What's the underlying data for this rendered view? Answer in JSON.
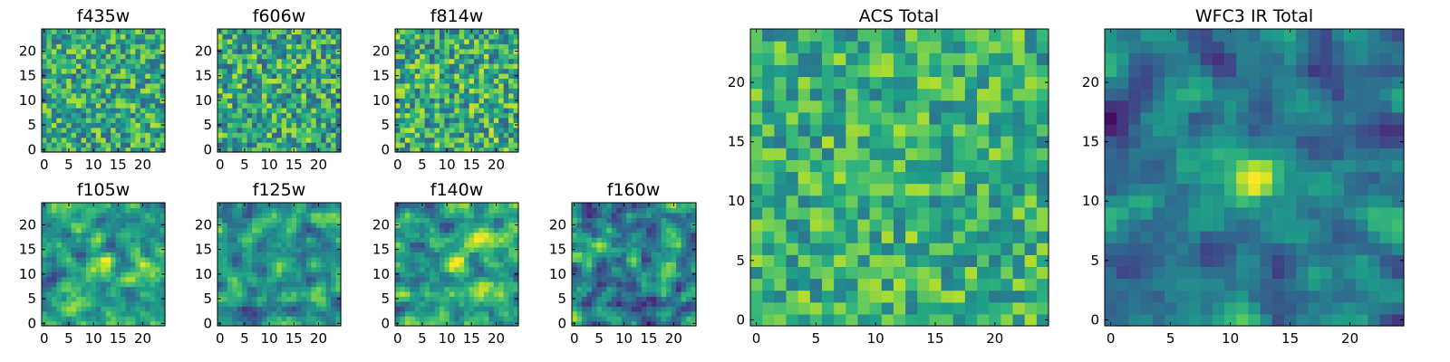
{
  "figure": {
    "description_type": "grid of pixel-image panels (imshow)",
    "colormap": "viridis"
  },
  "chart_data": [
    {
      "type": "heatmap",
      "title": "f435w",
      "grid_size": 25,
      "seed": 435,
      "smooth": 0,
      "bias": 0.6,
      "spread": 0.3,
      "blob": 0.0,
      "xticks": [
        "0",
        "5",
        "10",
        "15",
        "20"
      ],
      "yticks": [
        "0",
        "5",
        "10",
        "15",
        "20"
      ],
      "xlim": [
        -0.5,
        24.5
      ],
      "ylim": [
        -0.5,
        24.5
      ]
    },
    {
      "type": "heatmap",
      "title": "f606w",
      "grid_size": 25,
      "seed": 606,
      "smooth": 0,
      "bias": 0.6,
      "spread": 0.32,
      "blob": 0.0,
      "xticks": [
        "0",
        "5",
        "10",
        "15",
        "20"
      ],
      "yticks": [
        "0",
        "5",
        "10",
        "15",
        "20"
      ],
      "xlim": [
        -0.5,
        24.5
      ],
      "ylim": [
        -0.5,
        24.5
      ]
    },
    {
      "type": "heatmap",
      "title": "f814w",
      "grid_size": 25,
      "seed": 814,
      "smooth": 0,
      "bias": 0.62,
      "spread": 0.32,
      "blob": 0.0,
      "xticks": [
        "0",
        "5",
        "10",
        "15",
        "20"
      ],
      "yticks": [
        "0",
        "5",
        "10",
        "15",
        "20"
      ],
      "xlim": [
        -0.5,
        24.5
      ],
      "ylim": [
        -0.5,
        24.5
      ]
    },
    {
      "type": "heatmap",
      "title": "f105w",
      "grid_size": 25,
      "seed": 105,
      "smooth": 1,
      "bias": 0.58,
      "spread": 0.3,
      "blob": 0.35,
      "xticks": [
        "0",
        "5",
        "10",
        "15",
        "20"
      ],
      "yticks": [
        "0",
        "5",
        "10",
        "15",
        "20"
      ],
      "xlim": [
        -0.5,
        24.5
      ],
      "ylim": [
        -0.5,
        24.5
      ]
    },
    {
      "type": "heatmap",
      "title": "f125w",
      "grid_size": 25,
      "seed": 125,
      "smooth": 1,
      "bias": 0.52,
      "spread": 0.28,
      "blob": 0.45,
      "xticks": [
        "0",
        "5",
        "10",
        "15",
        "20"
      ],
      "yticks": [
        "0",
        "5",
        "10",
        "15",
        "20"
      ],
      "xlim": [
        -0.5,
        24.5
      ],
      "ylim": [
        -0.5,
        24.5
      ]
    },
    {
      "type": "heatmap",
      "title": "f140w",
      "grid_size": 25,
      "seed": 140,
      "smooth": 1,
      "bias": 0.6,
      "spread": 0.3,
      "blob": 0.35,
      "xticks": [
        "0",
        "5",
        "10",
        "15",
        "20"
      ],
      "yticks": [
        "0",
        "5",
        "10",
        "15",
        "20"
      ],
      "xlim": [
        -0.5,
        24.5
      ],
      "ylim": [
        -0.5,
        24.5
      ]
    },
    {
      "type": "heatmap",
      "title": "f160w",
      "grid_size": 25,
      "seed": 160,
      "smooth": 1,
      "bias": 0.45,
      "spread": 0.34,
      "blob": 0.45,
      "xticks": [
        "0",
        "5",
        "10",
        "15",
        "20"
      ],
      "yticks": [
        "0",
        "5",
        "10",
        "15",
        "20"
      ],
      "xlim": [
        -0.5,
        24.5
      ],
      "ylim": [
        -0.5,
        24.5
      ]
    },
    {
      "type": "heatmap",
      "title": "ACS Total",
      "grid_size": 25,
      "seed": 777,
      "smooth": 0,
      "bias": 0.64,
      "spread": 0.25,
      "blob": 0.0,
      "xticks": [
        "0",
        "5",
        "10",
        "15",
        "20"
      ],
      "yticks": [
        "0",
        "5",
        "10",
        "15",
        "20"
      ],
      "xlim": [
        -0.5,
        24.5
      ],
      "ylim": [
        -0.5,
        24.5
      ]
    },
    {
      "type": "heatmap",
      "title": "WFC3 IR Total",
      "grid_size": 25,
      "seed": 333,
      "smooth": 1,
      "bias": 0.4,
      "spread": 0.22,
      "blob": 0.6,
      "xticks": [
        "0",
        "5",
        "10",
        "15",
        "20"
      ],
      "yticks": [
        "0",
        "5",
        "10",
        "15",
        "20"
      ],
      "xlim": [
        -0.5,
        24.5
      ],
      "ylim": [
        -0.5,
        24.5
      ]
    }
  ]
}
